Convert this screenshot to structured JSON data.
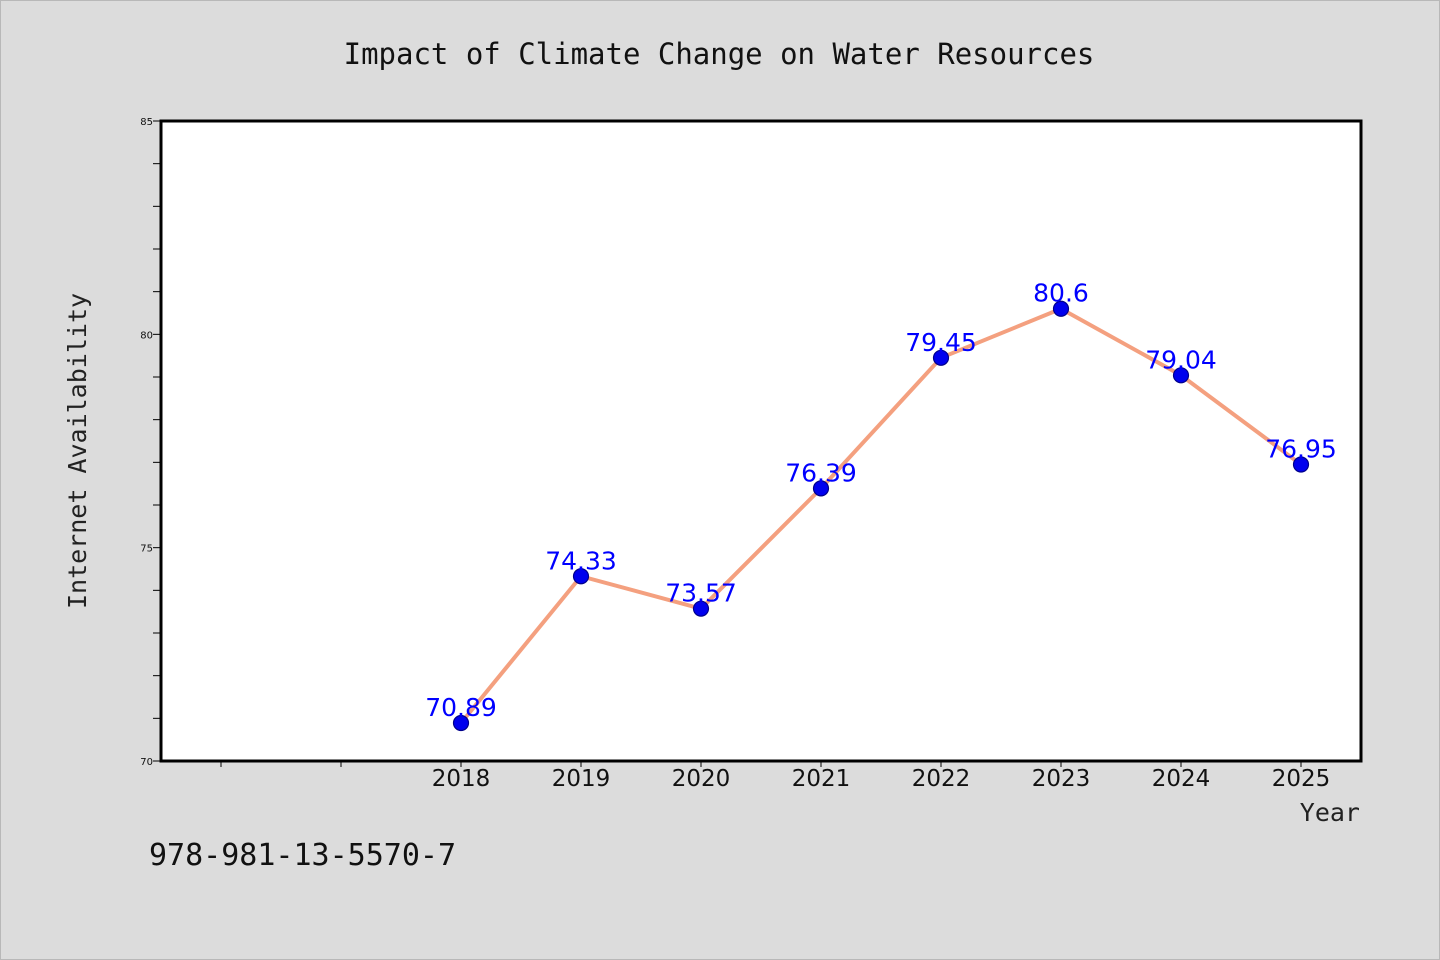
{
  "chart_data": {
    "type": "line",
    "title": "Impact of Climate Change on Water Resources",
    "xlabel": "Year",
    "ylabel": "Internet Availability",
    "categories": [
      "2018",
      "2019",
      "2020",
      "2021",
      "2022",
      "2023",
      "2024",
      "2025"
    ],
    "series": [
      {
        "values": [
          70.89,
          74.33,
          73.57,
          76.39,
          79.45,
          80.6,
          79.04,
          76.95
        ],
        "data_labels": [
          "70.89",
          "74.33",
          "73.57",
          "76.39",
          "79.45",
          "80.6",
          "79.04",
          "76.95"
        ],
        "line_color": "#f4a07f",
        "marker_color": "#0000ee"
      }
    ],
    "ylim": [
      70,
      85
    ],
    "yticks": [
      "70",
      "75",
      "80",
      "85"
    ],
    "grid": false,
    "legend": "none"
  },
  "annotation": "978-981-13-5570-7",
  "colors": {
    "background": "#dcdcdc",
    "plot_background": "#ffffff",
    "data_label": "#0000ff"
  }
}
